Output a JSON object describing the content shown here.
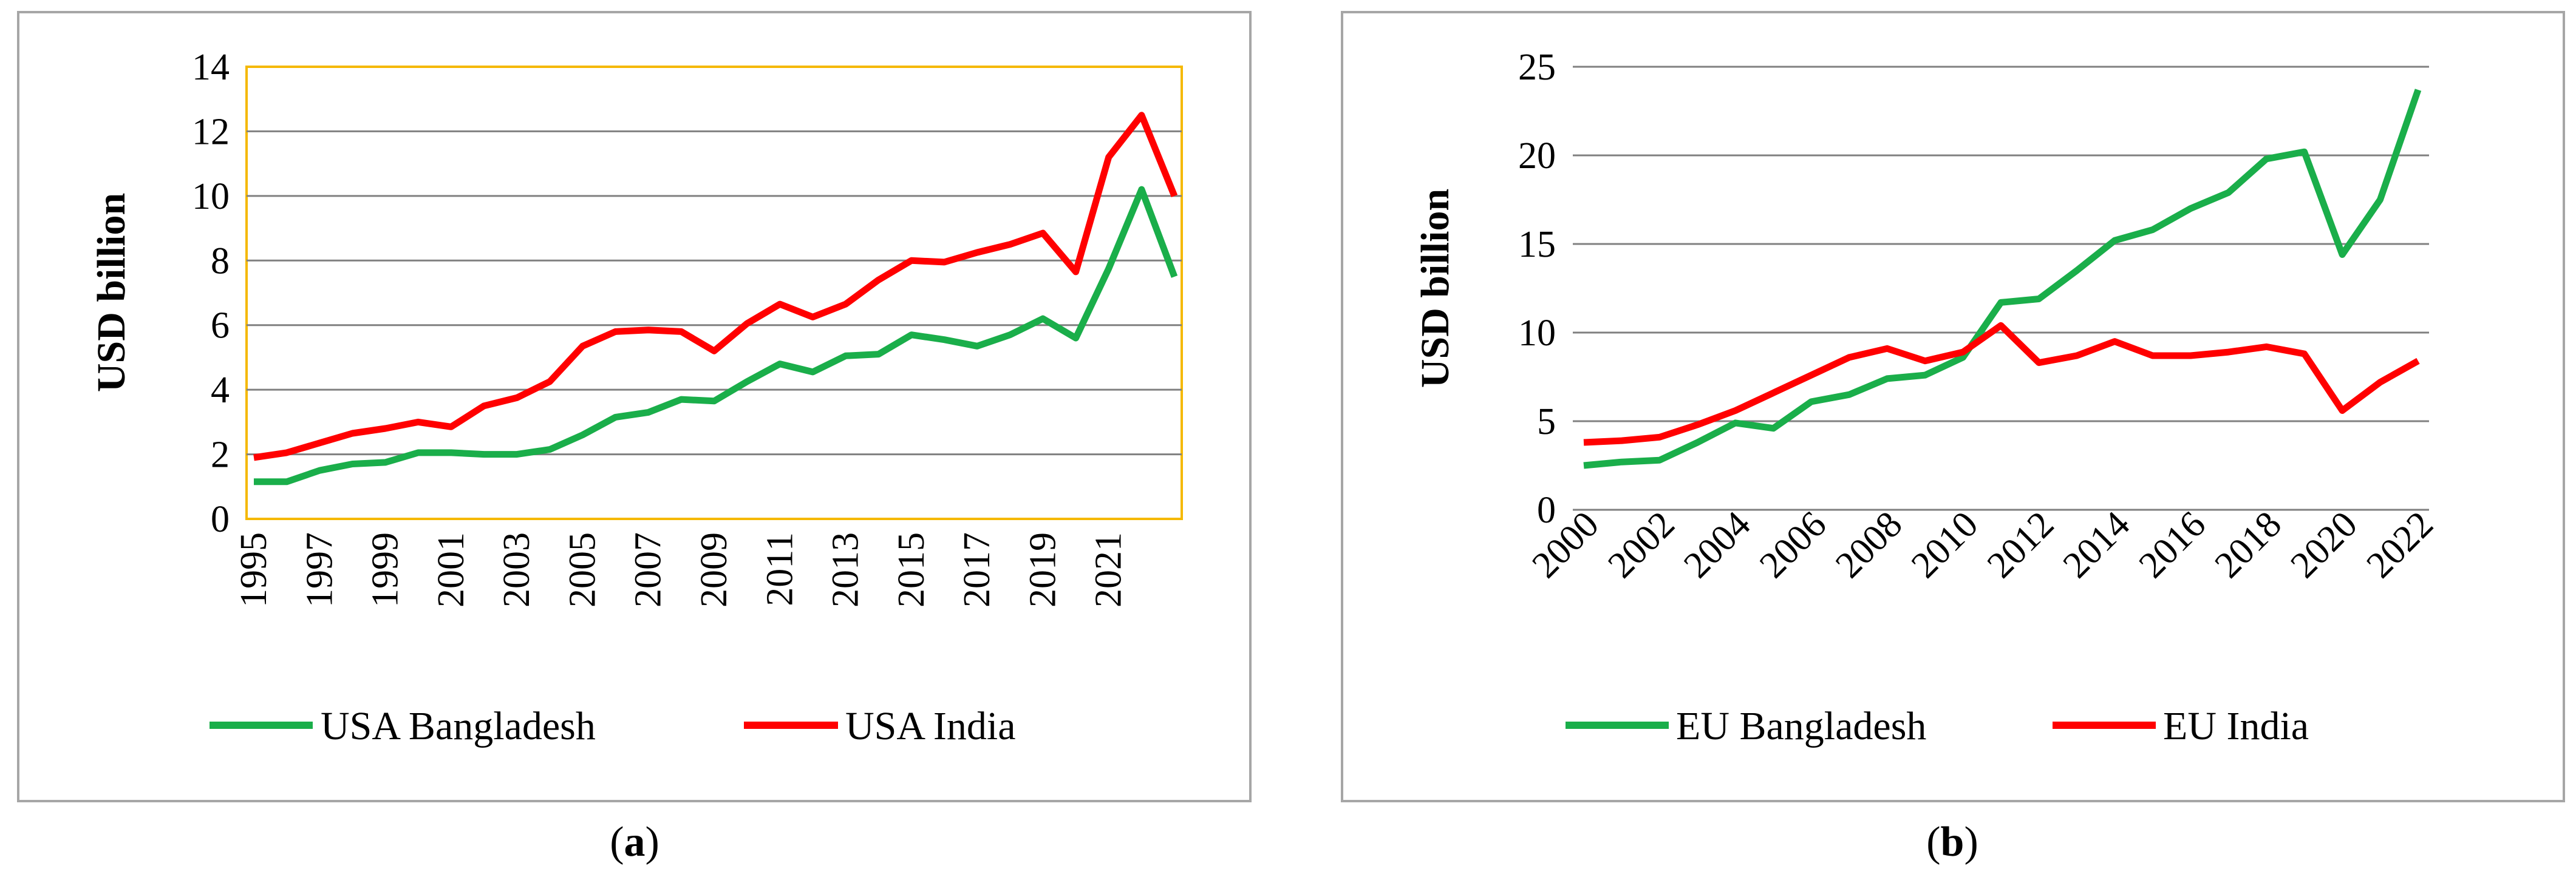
{
  "chart_data": [
    {
      "type": "line",
      "panel_label": "a",
      "ylabel": "USD billion",
      "ylim": [
        0,
        14
      ],
      "yticks": [
        0,
        2,
        4,
        6,
        8,
        10,
        12,
        14
      ],
      "grid": true,
      "x": [
        1995,
        1996,
        1997,
        1998,
        1999,
        2000,
        2001,
        2002,
        2003,
        2004,
        2005,
        2006,
        2007,
        2008,
        2009,
        2010,
        2011,
        2012,
        2013,
        2014,
        2015,
        2016,
        2017,
        2018,
        2019,
        2020,
        2021,
        2022,
        2023
      ],
      "xtick_labels": [
        "1995",
        "1997",
        "1999",
        "2001",
        "2003",
        "2005",
        "2007",
        "2009",
        "2011",
        "2013",
        "2015",
        "2017",
        "2019",
        "2021"
      ],
      "legend_position": "bottom",
      "series": [
        {
          "name": "USA Bangladesh",
          "color": "#1aae4a",
          "values": [
            1.15,
            1.15,
            1.5,
            1.7,
            1.75,
            2.05,
            2.05,
            2.0,
            2.0,
            2.15,
            2.6,
            3.15,
            3.3,
            3.7,
            3.65,
            4.25,
            4.8,
            4.55,
            5.05,
            5.1,
            5.7,
            5.55,
            5.35,
            5.7,
            6.2,
            5.6,
            7.75,
            10.2,
            7.5
          ]
        },
        {
          "name": "USA India",
          "color": "#ff0000",
          "values": [
            1.9,
            2.05,
            2.35,
            2.65,
            2.8,
            3.0,
            2.85,
            3.5,
            3.75,
            4.25,
            5.35,
            5.8,
            5.85,
            5.8,
            5.2,
            6.05,
            6.65,
            6.25,
            6.65,
            7.4,
            8.0,
            7.95,
            8.25,
            8.5,
            8.85,
            7.65,
            11.2,
            12.5,
            10.0
          ]
        }
      ]
    },
    {
      "type": "line",
      "panel_label": "b",
      "ylabel": "USD billion",
      "ylim": [
        0,
        25
      ],
      "yticks": [
        0,
        5,
        10,
        15,
        20,
        25
      ],
      "grid": true,
      "x": [
        2000,
        2001,
        2002,
        2003,
        2004,
        2005,
        2006,
        2007,
        2008,
        2009,
        2010,
        2011,
        2012,
        2013,
        2014,
        2015,
        2016,
        2017,
        2018,
        2019,
        2020,
        2021,
        2022
      ],
      "xtick_labels": [
        "2000",
        "2002",
        "2004",
        "2006",
        "2008",
        "2010",
        "2012",
        "2014",
        "2016",
        "2018",
        "2020",
        "2022"
      ],
      "legend_position": "bottom",
      "series": [
        {
          "name": "EU Bangladesh",
          "color": "#1aae4a",
          "values": [
            2.5,
            2.7,
            2.8,
            3.8,
            4.9,
            4.6,
            6.1,
            6.5,
            7.4,
            7.6,
            8.6,
            11.7,
            11.9,
            13.5,
            15.2,
            15.8,
            17.0,
            17.9,
            19.8,
            20.2,
            14.4,
            17.5,
            23.7
          ]
        },
        {
          "name": "EU India",
          "color": "#ff0000",
          "values": [
            3.8,
            3.9,
            4.1,
            4.8,
            5.6,
            6.6,
            7.6,
            8.6,
            9.1,
            8.4,
            8.9,
            10.4,
            8.3,
            8.7,
            9.5,
            8.7,
            8.7,
            8.9,
            9.2,
            8.8,
            5.6,
            7.2,
            8.4
          ]
        }
      ]
    }
  ]
}
